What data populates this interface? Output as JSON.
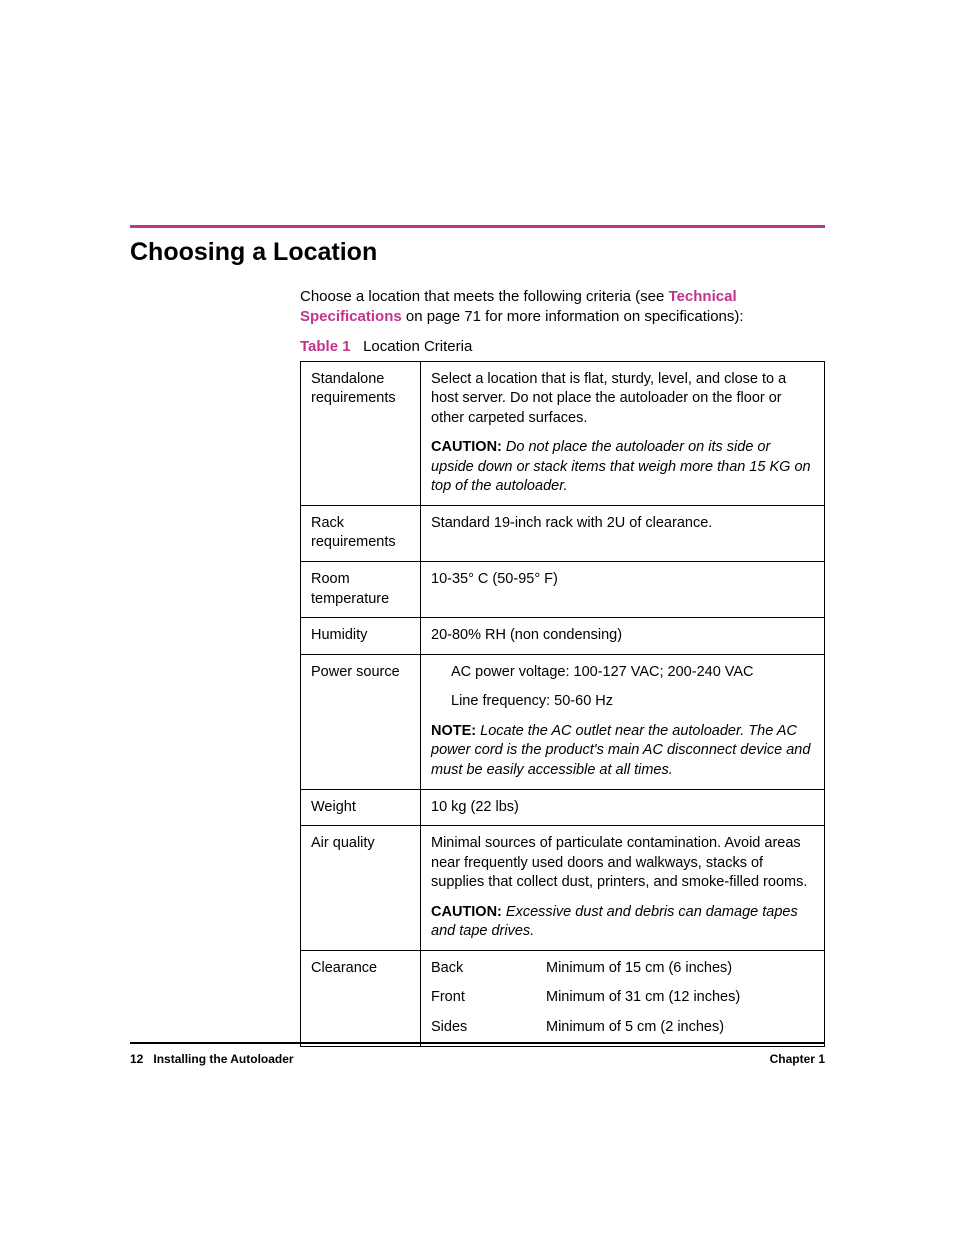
{
  "colors": {
    "accent": "#c2348c",
    "text": "#000000",
    "background": "#ffffff",
    "rule": "#000000"
  },
  "typography": {
    "body_family": "Arial, Helvetica, sans-serif",
    "title_size_pt": 19,
    "body_size_pt": 11,
    "footer_size_pt": 9
  },
  "section": {
    "title": "Choosing a Location",
    "intro_pre": "Choose a location that meets the following criteria (see ",
    "intro_link": "Technical Specifications",
    "intro_post": " on page 71 for more information on specifications):"
  },
  "table": {
    "caption_label": "Table 1",
    "caption_text": "Location Criteria",
    "rows": [
      {
        "label": "Standalone requirements",
        "paras": [
          {
            "text": "Select a location that is flat, sturdy, level, and close to a host server. Do not place the autoloader on the floor or other carpeted surfaces."
          },
          {
            "lead": "CAUTION:",
            "italic": "Do not place the autoloader on its side or upside down or stack items that weigh more than 15 KG on top of the autoloader."
          }
        ]
      },
      {
        "label": "Rack requirements",
        "paras": [
          {
            "text": "Standard 19-inch rack with 2U of clearance."
          }
        ]
      },
      {
        "label": "Room temperature",
        "paras": [
          {
            "text": "10-35° C (50-95° F)"
          }
        ]
      },
      {
        "label": "Humidity",
        "paras": [
          {
            "text": "20-80% RH (non condensing)"
          }
        ]
      },
      {
        "label": "Power source",
        "paras": [
          {
            "indent": true,
            "text": "AC power voltage: 100-127 VAC; 200-240 VAC"
          },
          {
            "indent": true,
            "text": "Line frequency: 50-60 Hz"
          },
          {
            "lead": "NOTE:",
            "italic": "Locate the AC outlet near the autoloader. The AC power cord is the product's main AC disconnect device and must be easily accessible at all times."
          }
        ]
      },
      {
        "label": "Weight",
        "paras": [
          {
            "text": "10 kg (22 lbs)"
          }
        ]
      },
      {
        "label": "Air quality",
        "paras": [
          {
            "text": "Minimal sources of particulate contamination. Avoid areas near frequently used doors and walkways, stacks of supplies that collect dust, printers, and smoke-filled rooms."
          },
          {
            "lead": "CAUTION:",
            "italic": "Excessive dust and debris can damage tapes and tape drives."
          }
        ]
      },
      {
        "label": "Clearance",
        "clearance": [
          {
            "side": "Back",
            "val": "Minimum of 15 cm (6 inches)"
          },
          {
            "side": "Front",
            "val": "Minimum of 31 cm (12 inches)"
          },
          {
            "side": "Sides",
            "val": "Minimum of 5 cm (2 inches)"
          }
        ]
      }
    ]
  },
  "footer": {
    "page_number": "12",
    "section_name": "Installing the Autoloader",
    "chapter": "Chapter 1"
  }
}
